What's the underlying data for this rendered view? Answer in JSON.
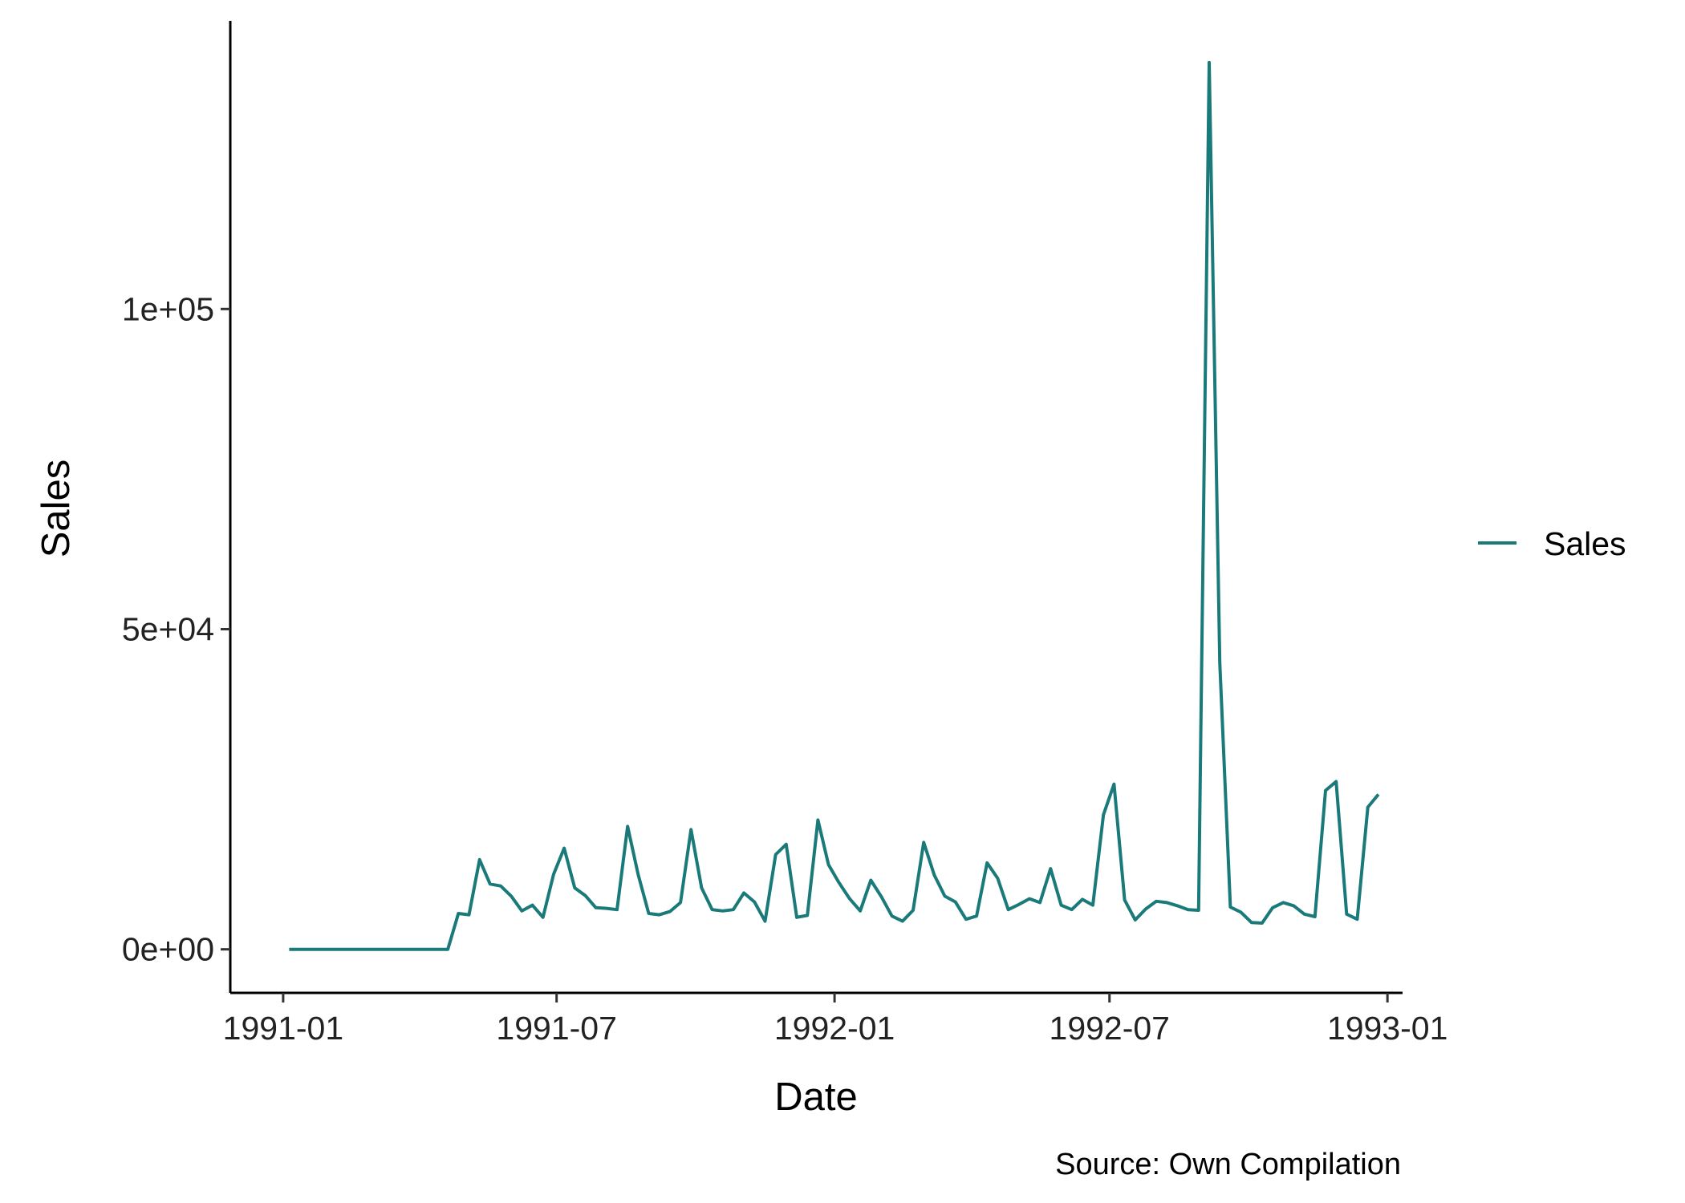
{
  "chart_data": {
    "type": "line",
    "title": "",
    "xlabel": "Date",
    "ylabel": "Sales",
    "caption": "Source: Own Compilation",
    "x_ticks": [
      "1991-01",
      "1991-07",
      "1992-01",
      "1992-07",
      "1993-01"
    ],
    "y_ticks": [
      "0e+00",
      "5e+04",
      "1e+05"
    ],
    "y_tick_values": [
      0,
      50000,
      100000
    ],
    "xlim": [
      "1990-11-27",
      "1993-01-11"
    ],
    "ylim": [
      -6800,
      145000
    ],
    "grid": false,
    "legend": {
      "position": "right",
      "entries": [
        "Sales"
      ]
    },
    "series": [
      {
        "name": "Sales",
        "color": "#1a7a7a",
        "points": [
          [
            "1991-01-05",
            0
          ],
          [
            "1991-01-12",
            0
          ],
          [
            "1991-01-19",
            0
          ],
          [
            "1991-01-26",
            0
          ],
          [
            "1991-02-02",
            0
          ],
          [
            "1991-02-09",
            0
          ],
          [
            "1991-02-16",
            0
          ],
          [
            "1991-02-23",
            0
          ],
          [
            "1991-03-02",
            0
          ],
          [
            "1991-03-09",
            0
          ],
          [
            "1991-03-16",
            0
          ],
          [
            "1991-03-23",
            0
          ],
          [
            "1991-03-30",
            0
          ],
          [
            "1991-04-06",
            0
          ],
          [
            "1991-04-13",
            0
          ],
          [
            "1991-04-20",
            0
          ],
          [
            "1991-04-27",
            5600
          ],
          [
            "1991-05-04",
            5400
          ],
          [
            "1991-05-11",
            14000
          ],
          [
            "1991-05-18",
            10200
          ],
          [
            "1991-05-25",
            9900
          ],
          [
            "1991-06-01",
            8300
          ],
          [
            "1991-06-08",
            6000
          ],
          [
            "1991-06-15",
            6900
          ],
          [
            "1991-06-22",
            5000
          ],
          [
            "1991-06-29",
            11700
          ],
          [
            "1991-07-06",
            15800
          ],
          [
            "1991-07-13",
            9600
          ],
          [
            "1991-07-20",
            8400
          ],
          [
            "1991-07-27",
            6500
          ],
          [
            "1991-08-03",
            6400
          ],
          [
            "1991-08-10",
            6200
          ],
          [
            "1991-08-17",
            19200
          ],
          [
            "1991-08-24",
            11700
          ],
          [
            "1991-08-31",
            5600
          ],
          [
            "1991-09-07",
            5400
          ],
          [
            "1991-09-14",
            5900
          ],
          [
            "1991-09-21",
            7300
          ],
          [
            "1991-09-28",
            18700
          ],
          [
            "1991-10-05",
            9600
          ],
          [
            "1991-10-12",
            6200
          ],
          [
            "1991-10-19",
            6000
          ],
          [
            "1991-10-26",
            6200
          ],
          [
            "1991-11-02",
            8800
          ],
          [
            "1991-11-09",
            7400
          ],
          [
            "1991-11-16",
            4400
          ],
          [
            "1991-11-23",
            14800
          ],
          [
            "1991-11-30",
            16400
          ],
          [
            "1991-12-07",
            5000
          ],
          [
            "1991-12-14",
            5300
          ],
          [
            "1991-12-21",
            20200
          ],
          [
            "1991-12-28",
            13200
          ],
          [
            "1992-01-04",
            10400
          ],
          [
            "1992-01-11",
            7900
          ],
          [
            "1992-01-18",
            6000
          ],
          [
            "1992-01-25",
            10800
          ],
          [
            "1992-02-01",
            8200
          ],
          [
            "1992-02-08",
            5200
          ],
          [
            "1992-02-15",
            4400
          ],
          [
            "1992-02-22",
            6100
          ],
          [
            "1992-02-29",
            16700
          ],
          [
            "1992-03-07",
            11600
          ],
          [
            "1992-03-14",
            8300
          ],
          [
            "1992-03-21",
            7400
          ],
          [
            "1992-03-28",
            4700
          ],
          [
            "1992-04-04",
            5200
          ],
          [
            "1992-04-11",
            13500
          ],
          [
            "1992-04-18",
            11100
          ],
          [
            "1992-04-25",
            6200
          ],
          [
            "1992-05-02",
            7000
          ],
          [
            "1992-05-09",
            7900
          ],
          [
            "1992-05-16",
            7300
          ],
          [
            "1992-05-23",
            12600
          ],
          [
            "1992-05-30",
            6900
          ],
          [
            "1992-06-06",
            6200
          ],
          [
            "1992-06-13",
            7800
          ],
          [
            "1992-06-20",
            6900
          ],
          [
            "1992-06-27",
            21000
          ],
          [
            "1992-07-04",
            25800
          ],
          [
            "1992-07-11",
            7700
          ],
          [
            "1992-07-18",
            4600
          ],
          [
            "1992-07-25",
            6300
          ],
          [
            "1992-08-01",
            7500
          ],
          [
            "1992-08-08",
            7300
          ],
          [
            "1992-08-15",
            6800
          ],
          [
            "1992-08-22",
            6200
          ],
          [
            "1992-08-29",
            6100
          ],
          [
            "1992-09-05",
            138500
          ],
          [
            "1992-09-12",
            44800
          ],
          [
            "1992-09-19",
            6600
          ],
          [
            "1992-09-26",
            5800
          ],
          [
            "1992-10-03",
            4200
          ],
          [
            "1992-10-10",
            4100
          ],
          [
            "1992-10-17",
            6500
          ],
          [
            "1992-10-24",
            7300
          ],
          [
            "1992-10-31",
            6800
          ],
          [
            "1992-11-07",
            5500
          ],
          [
            "1992-11-14",
            5100
          ],
          [
            "1992-11-21",
            24800
          ],
          [
            "1992-11-28",
            26200
          ],
          [
            "1992-12-05",
            5500
          ],
          [
            "1992-12-12",
            4700
          ],
          [
            "1992-12-19",
            22200
          ],
          [
            "1992-12-26",
            24200
          ]
        ]
      }
    ]
  }
}
